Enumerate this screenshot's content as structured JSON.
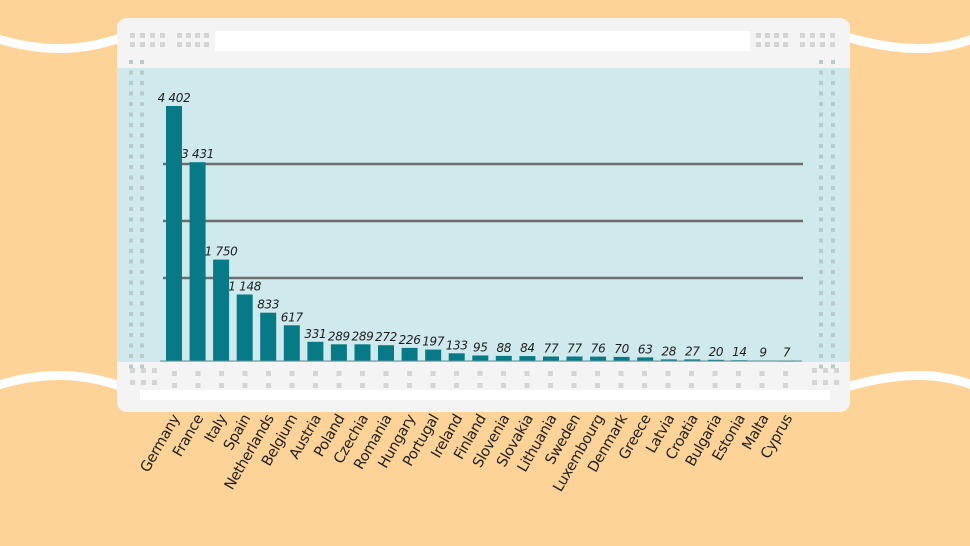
{
  "chart_data": {
    "type": "bar",
    "title": "",
    "xlabel": "",
    "ylabel": "",
    "ylim": [
      0,
      4402
    ],
    "grid": true,
    "categories": [
      "Germany",
      "France",
      "Italy",
      "Spain",
      "Netherlands",
      "Belgium",
      "Austria",
      "Poland",
      "Czechia",
      "Romania",
      "Hungary",
      "Portugal",
      "Ireland",
      "Finland",
      "Slovenia",
      "Slovakia",
      "Lithuania",
      "Sweden",
      "Luxembourg",
      "Denmark",
      "Greece",
      "Latvia",
      "Croatia",
      "Bulgaria",
      "Estonia",
      "Malta",
      "Cyprus"
    ],
    "values": [
      4402,
      3431,
      1750,
      1148,
      833,
      617,
      331,
      289,
      289,
      272,
      226,
      197,
      133,
      95,
      88,
      84,
      77,
      77,
      76,
      70,
      63,
      28,
      27,
      20,
      14,
      9,
      7
    ],
    "value_labels": [
      "4 402",
      "3 431",
      "1 750",
      "1 148",
      "833",
      "617",
      "331",
      "289",
      "289",
      "272",
      "226",
      "197",
      "133",
      "95",
      "88",
      "84",
      "77",
      "77",
      "76",
      "70",
      "63",
      "28",
      "27",
      "20",
      "14",
      "9",
      "7"
    ],
    "colors": {
      "bar": "#067a86",
      "plot_background": "#cfe9ec",
      "page_background": "#fdd397",
      "gridline": "#6e6e6e"
    }
  }
}
